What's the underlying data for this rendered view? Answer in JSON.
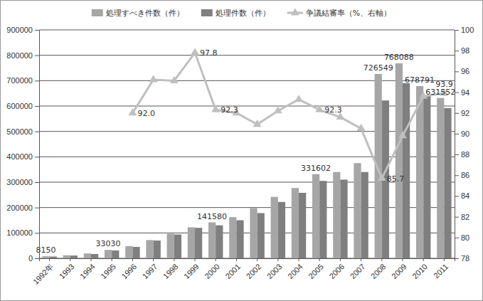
{
  "chart_data": {
    "type": "bar",
    "categories": [
      "1992年",
      "1993",
      "1994",
      "1995",
      "1996",
      "1997",
      "1998",
      "1999",
      "2000",
      "2001",
      "2002",
      "2003",
      "2004",
      "2005",
      "2006",
      "2007",
      "2008",
      "2009",
      "2010",
      "2011"
    ],
    "series": [
      {
        "name": "処理すべき件数（件）",
        "type": "bar",
        "color": "#a6a6a6",
        "values": [
          8150,
          12000,
          19000,
          33030,
          48000,
          72000,
          97000,
          122000,
          141580,
          162000,
          198000,
          242000,
          277000,
          331602,
          340000,
          375000,
          726549,
          768088,
          678791,
          631552
        ],
        "value_labels": [
          "8150",
          null,
          null,
          "33030",
          null,
          null,
          null,
          null,
          "141580",
          null,
          null,
          null,
          null,
          "331602",
          null,
          null,
          "726549",
          "768088",
          "678791",
          "631552"
        ]
      },
      {
        "name": "処理件数（件）",
        "type": "bar",
        "color": "#7f7f7f",
        "values": [
          7000,
          11000,
          17000,
          31000,
          45000,
          70000,
          94000,
          120000,
          130000,
          150000,
          178000,
          222000,
          258000,
          305000,
          310000,
          340000,
          622000,
          690000,
          640000,
          592000
        ]
      },
      {
        "name": "争議結審率（%、右軸）",
        "type": "line",
        "axis": "y2",
        "color": "#bfbfbf",
        "marker": "triangle",
        "values": [
          null,
          null,
          null,
          null,
          92.0,
          95.2,
          95.1,
          97.8,
          92.3,
          92.0,
          90.9,
          92.2,
          93.3,
          92.3,
          91.6,
          90.5,
          85.7,
          89.8,
          93.6,
          93.9
        ],
        "value_labels": [
          null,
          null,
          null,
          null,
          "92.0",
          null,
          null,
          "97.8",
          "92.3",
          null,
          null,
          null,
          null,
          "92.3",
          null,
          null,
          "85.7",
          null,
          null,
          "93.9"
        ]
      }
    ],
    "ylim": [
      0,
      900000
    ],
    "yticks": [
      0,
      100000,
      200000,
      300000,
      400000,
      500000,
      600000,
      700000,
      800000,
      900000
    ],
    "y2lim": [
      78,
      100
    ],
    "y2ticks": [
      78,
      80,
      82,
      84,
      86,
      88,
      90,
      92,
      94,
      96,
      98,
      100
    ],
    "grid": true,
    "legend": "top",
    "data_labels": true
  }
}
